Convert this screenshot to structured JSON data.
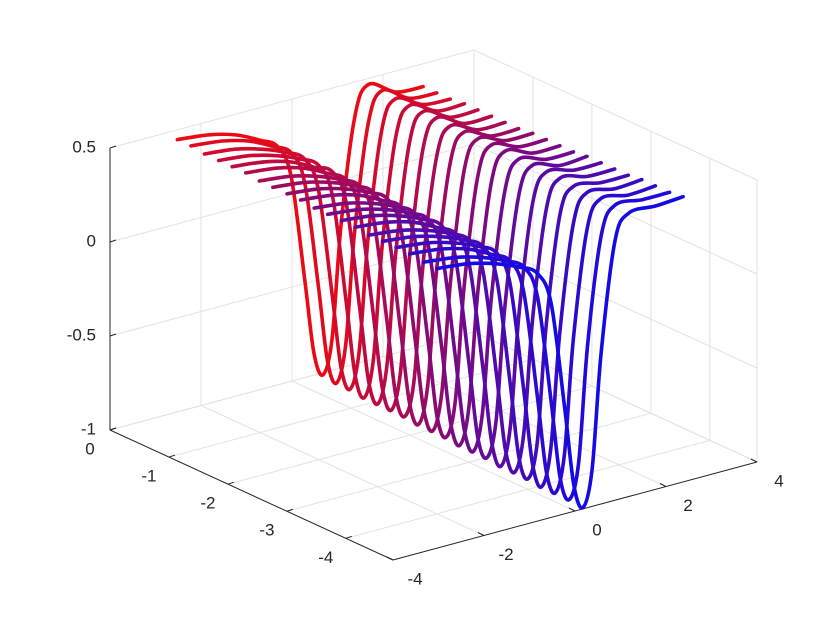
{
  "chart_data": {
    "type": "line3d",
    "xlim": [
      -4,
      4
    ],
    "ylim": [
      -4.8,
      0
    ],
    "zlim": [
      -1,
      0.5
    ],
    "xticks": [
      -4,
      -2,
      0,
      2,
      4
    ],
    "yticks": [
      0,
      -1,
      -2,
      -3,
      -4
    ],
    "zticks": [
      -1,
      -0.5,
      0,
      0.5
    ],
    "grid": true,
    "x": [
      -2.7,
      -2,
      -1.4,
      -0.9,
      -0.5,
      -0.2,
      0.1,
      0.3,
      0.5,
      0.7,
      0.9,
      1.2,
      1.5,
      2.1,
      2.7
    ],
    "series": [
      {
        "y": -0.14,
        "color": "#eb0a14",
        "values": [
          0.48,
          0.46,
          0.42,
          0.36,
          0.3,
          0.12,
          -0.45,
          -0.85,
          -0.98,
          -0.8,
          -0.2,
          0.35,
          0.5,
          0.42,
          0.41
        ]
      },
      {
        "y": -0.37,
        "color": "#e00a1f",
        "values": [
          0.48,
          0.46,
          0.42,
          0.36,
          0.3,
          0.12,
          -0.45,
          -0.86,
          -0.99,
          -0.8,
          -0.2,
          0.35,
          0.5,
          0.42,
          0.41
        ]
      },
      {
        "y": -0.6,
        "color": "#d40a2a",
        "values": [
          0.47,
          0.45,
          0.41,
          0.36,
          0.3,
          0.12,
          -0.45,
          -0.86,
          -0.99,
          -0.8,
          -0.2,
          0.35,
          0.49,
          0.42,
          0.41
        ]
      },
      {
        "y": -0.84,
        "color": "#c90a35",
        "values": [
          0.47,
          0.45,
          0.41,
          0.36,
          0.3,
          0.12,
          -0.46,
          -0.87,
          -1.0,
          -0.81,
          -0.2,
          0.35,
          0.49,
          0.42,
          0.42
        ]
      },
      {
        "y": -1.07,
        "color": "#be0a40",
        "values": [
          0.47,
          0.45,
          0.41,
          0.35,
          0.3,
          0.12,
          -0.46,
          -0.87,
          -1.0,
          -0.81,
          -0.21,
          0.35,
          0.49,
          0.42,
          0.42
        ]
      },
      {
        "y": -1.3,
        "color": "#b20a4b",
        "values": [
          0.47,
          0.45,
          0.41,
          0.35,
          0.29,
          0.11,
          -0.46,
          -0.87,
          -1.0,
          -0.81,
          -0.21,
          0.35,
          0.49,
          0.42,
          0.42
        ]
      },
      {
        "y": -1.53,
        "color": "#a70a56",
        "values": [
          0.46,
          0.44,
          0.4,
          0.35,
          0.29,
          0.11,
          -0.46,
          -0.88,
          -1.0,
          -0.82,
          -0.21,
          0.34,
          0.48,
          0.42,
          0.42
        ]
      },
      {
        "y": -1.76,
        "color": "#9c0a61",
        "values": [
          0.46,
          0.44,
          0.4,
          0.35,
          0.29,
          0.11,
          -0.47,
          -0.88,
          -1.01,
          -0.82,
          -0.21,
          0.34,
          0.48,
          0.42,
          0.42
        ]
      },
      {
        "y": -2.0,
        "color": "#900a6c",
        "values": [
          0.46,
          0.44,
          0.4,
          0.35,
          0.29,
          0.11,
          -0.47,
          -0.88,
          -1.01,
          -0.82,
          -0.22,
          0.34,
          0.48,
          0.43,
          0.43
        ]
      },
      {
        "y": -2.23,
        "color": "#850a77",
        "values": [
          0.46,
          0.44,
          0.4,
          0.34,
          0.28,
          0.1,
          -0.47,
          -0.89,
          -1.01,
          -0.83,
          -0.22,
          0.34,
          0.48,
          0.43,
          0.43
        ]
      },
      {
        "y": -2.46,
        "color": "#7a0a82",
        "values": [
          0.45,
          0.43,
          0.39,
          0.34,
          0.28,
          0.1,
          -0.47,
          -0.89,
          -1.02,
          -0.83,
          -0.22,
          0.34,
          0.48,
          0.43,
          0.43
        ]
      },
      {
        "y": -2.69,
        "color": "#6f0a8e",
        "values": [
          0.45,
          0.43,
          0.39,
          0.34,
          0.28,
          0.1,
          -0.48,
          -0.89,
          -1.02,
          -0.83,
          -0.22,
          0.33,
          0.47,
          0.43,
          0.43
        ]
      },
      {
        "y": -2.92,
        "color": "#630a99",
        "values": [
          0.45,
          0.43,
          0.39,
          0.34,
          0.28,
          0.1,
          -0.48,
          -0.9,
          -1.02,
          -0.84,
          -0.23,
          0.33,
          0.47,
          0.43,
          0.44
        ]
      },
      {
        "y": -3.16,
        "color": "#580aa4",
        "values": [
          0.45,
          0.43,
          0.39,
          0.33,
          0.27,
          0.09,
          -0.48,
          -0.9,
          -1.03,
          -0.84,
          -0.23,
          0.33,
          0.47,
          0.44,
          0.44
        ]
      },
      {
        "y": -3.39,
        "color": "#4d0aaf",
        "values": [
          0.44,
          0.42,
          0.38,
          0.33,
          0.27,
          0.09,
          -0.48,
          -0.9,
          -1.03,
          -0.84,
          -0.23,
          0.33,
          0.47,
          0.44,
          0.44
        ]
      },
      {
        "y": -3.62,
        "color": "#410aba",
        "values": [
          0.44,
          0.42,
          0.38,
          0.33,
          0.27,
          0.09,
          -0.49,
          -0.91,
          -1.03,
          -0.85,
          -0.23,
          0.33,
          0.46,
          0.44,
          0.44
        ]
      },
      {
        "y": -3.85,
        "color": "#360ac5",
        "values": [
          0.44,
          0.42,
          0.38,
          0.33,
          0.27,
          0.09,
          -0.49,
          -0.91,
          -1.04,
          -0.85,
          -0.24,
          0.32,
          0.46,
          0.44,
          0.45
        ]
      },
      {
        "y": -4.08,
        "color": "#2b0ad0",
        "values": [
          0.44,
          0.42,
          0.38,
          0.32,
          0.26,
          0.08,
          -0.49,
          -0.91,
          -1.04,
          -0.85,
          -0.24,
          0.32,
          0.46,
          0.44,
          0.45
        ]
      },
      {
        "y": -4.32,
        "color": "#1f0adb",
        "values": [
          0.43,
          0.41,
          0.37,
          0.32,
          0.26,
          0.08,
          -0.5,
          -0.92,
          -1.04,
          -0.86,
          -0.24,
          0.32,
          0.46,
          0.45,
          0.45
        ]
      },
      {
        "y": -4.55,
        "color": "#140ae6",
        "values": [
          0.43,
          0.41,
          0.37,
          0.32,
          0.26,
          0.08,
          -0.5,
          -0.92,
          -1.05,
          -0.86,
          -0.25,
          0.32,
          0.45,
          0.45,
          0.46
        ]
      }
    ]
  }
}
